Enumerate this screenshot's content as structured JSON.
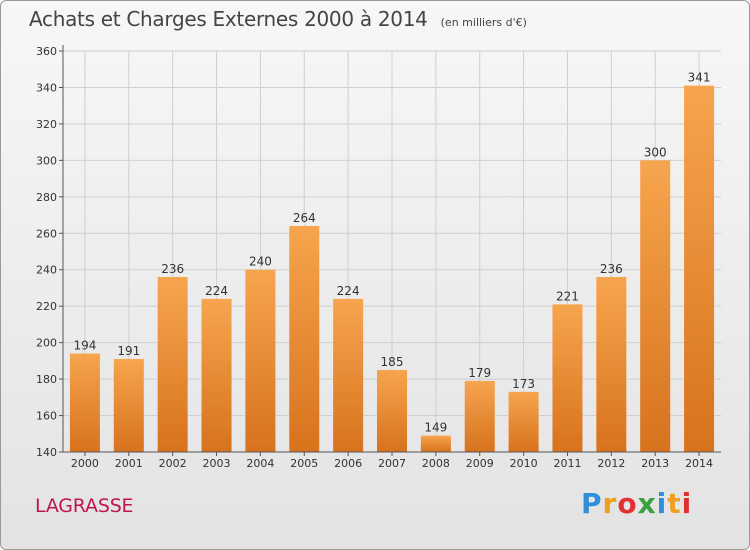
{
  "header": {
    "title": "Achats et Charges Externes 2000 à 2014",
    "subtitle": "(en milliers d'€)"
  },
  "footer": {
    "place": "LAGRASSE",
    "logo_letters": [
      "P",
      "r",
      "o",
      "x",
      "i",
      "t",
      "i"
    ],
    "logo_colors": [
      "#2f8fd8",
      "#f0a020",
      "#e03030",
      "#3aa040",
      "#2f8fd8",
      "#f0a020",
      "#e03030"
    ]
  },
  "colors": {
    "bar_top": "#f6a54e",
    "bar_bottom": "#d8721d",
    "grid": "#cfcfcf",
    "axis": "#555555",
    "text": "#333333"
  },
  "chart_data": {
    "type": "bar",
    "title": "Achats et Charges Externes 2000 à 2014",
    "subtitle": "(en milliers d'€)",
    "categories": [
      "2000",
      "2001",
      "2002",
      "2003",
      "2004",
      "2005",
      "2006",
      "2007",
      "2008",
      "2009",
      "2010",
      "2011",
      "2012",
      "2013",
      "2014"
    ],
    "values": [
      194,
      191,
      236,
      224,
      240,
      264,
      224,
      185,
      149,
      179,
      173,
      221,
      236,
      300,
      341
    ],
    "ylim": [
      140,
      360
    ],
    "yticks": [
      140,
      160,
      180,
      200,
      220,
      240,
      260,
      280,
      300,
      320,
      340,
      360
    ],
    "grid": true,
    "legend": "none"
  }
}
